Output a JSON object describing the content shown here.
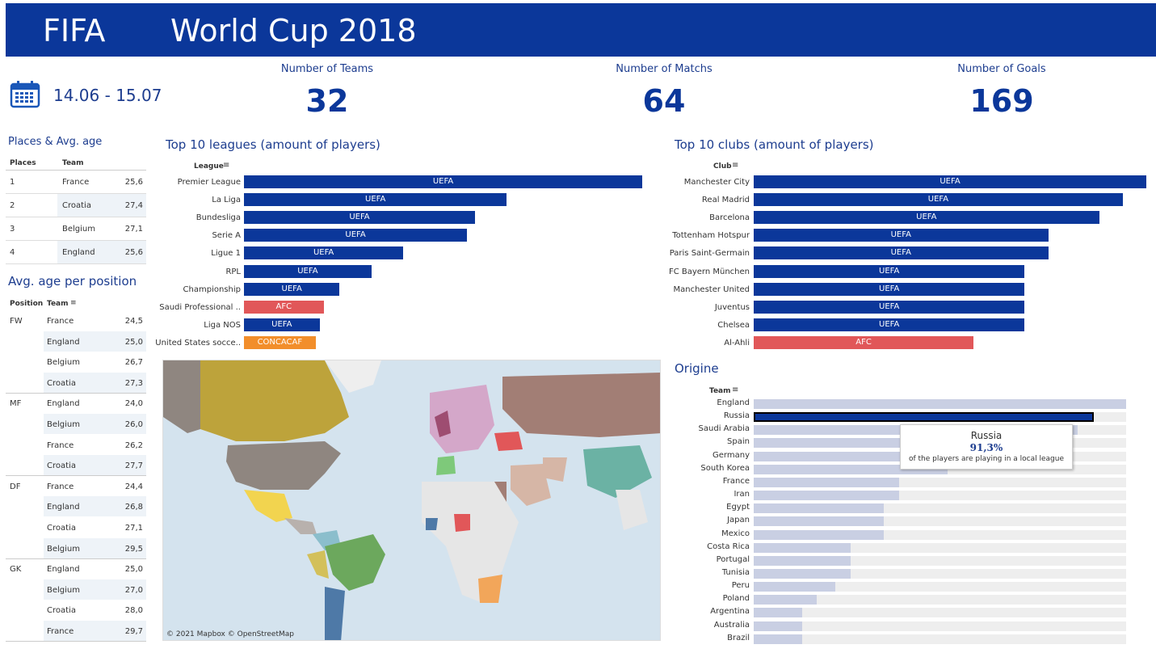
{
  "header": {
    "brand": "FIFA",
    "title": "World Cup 2018"
  },
  "dates": "14.06 - 15.07",
  "kpis": [
    {
      "label": "Number of Teams",
      "value": "32"
    },
    {
      "label": "Number of Matchs",
      "value": "64"
    },
    {
      "label": "Number of Goals",
      "value": "169"
    }
  ],
  "places": {
    "title": "Places & Avg. age",
    "col_places": "Places",
    "col_team": "Team",
    "rows": [
      {
        "place": "1",
        "team": "France",
        "age": "25,6"
      },
      {
        "place": "2",
        "team": "Croatia",
        "age": "27,4"
      },
      {
        "place": "3",
        "team": "Belgium",
        "age": "27,1"
      },
      {
        "place": "4",
        "team": "England",
        "age": "25,6"
      }
    ]
  },
  "positions": {
    "title": "Avg. age per position",
    "col_position": "Position",
    "col_team": "Team",
    "groups": [
      {
        "position": "FW",
        "rows": [
          {
            "team": "France",
            "age": "24,5"
          },
          {
            "team": "England",
            "age": "25,0"
          },
          {
            "team": "Belgium",
            "age": "26,7"
          },
          {
            "team": "Croatia",
            "age": "27,3"
          }
        ]
      },
      {
        "position": "MF",
        "rows": [
          {
            "team": "England",
            "age": "24,0"
          },
          {
            "team": "Belgium",
            "age": "26,0"
          },
          {
            "team": "France",
            "age": "26,2"
          },
          {
            "team": "Croatia",
            "age": "27,7"
          }
        ]
      },
      {
        "position": "DF",
        "rows": [
          {
            "team": "France",
            "age": "24,4"
          },
          {
            "team": "England",
            "age": "26,8"
          },
          {
            "team": "Croatia",
            "age": "27,1"
          },
          {
            "team": "Belgium",
            "age": "29,5"
          }
        ]
      },
      {
        "position": "GK",
        "rows": [
          {
            "team": "England",
            "age": "25,0"
          },
          {
            "team": "Belgium",
            "age": "27,0"
          },
          {
            "team": "Croatia",
            "age": "28,0"
          },
          {
            "team": "France",
            "age": "29,7"
          }
        ]
      }
    ]
  },
  "map": {
    "attribution": "© 2021 Mapbox © OpenStreetMap"
  },
  "tooltip": {
    "team": "Russia",
    "value": "91,3%",
    "text": "of the players are playing in a local league"
  },
  "colors": {
    "uefa": "#0b379a",
    "afc": "#e15759",
    "concacaf": "#f28e2b",
    "header": "#0b379a",
    "origin_bar": "#c9cfe3",
    "origin_track": "#eeeeee"
  },
  "chart_data": [
    {
      "type": "bar",
      "title": "Top 10 leagues (amount of players)",
      "axis_header": "League",
      "categories": [
        "Premier League",
        "La Liga",
        "Bundesliga",
        "Serie A",
        "Ligue 1",
        "RPL",
        "Championship",
        "Saudi Professional ..",
        "Liga NOS",
        "United States socce.."
      ],
      "values": [
        100,
        66,
        58,
        56,
        40,
        32,
        24,
        20,
        19,
        18
      ],
      "labels": [
        "UEFA",
        "UEFA",
        "UEFA",
        "UEFA",
        "UEFA",
        "UEFA",
        "UEFA",
        "AFC",
        "UEFA",
        "CONCACAF"
      ]
    },
    {
      "type": "bar",
      "title": "Top 10 clubs (amount of players)",
      "axis_header": "Club",
      "categories": [
        "Manchester City",
        "Real Madrid",
        "Barcelona",
        "Tottenham Hotspur",
        "Paris Saint-Germain",
        "FC Bayern München",
        "Manchester United",
        "Juventus",
        "Chelsea",
        "Al-Ahli"
      ],
      "values": [
        100,
        94,
        88,
        75,
        75,
        69,
        69,
        69,
        69,
        56
      ],
      "labels": [
        "UEFA",
        "UEFA",
        "UEFA",
        "UEFA",
        "UEFA",
        "UEFA",
        "UEFA",
        "UEFA",
        "UEFA",
        "AFC"
      ]
    },
    {
      "type": "bar",
      "title": "Origine",
      "axis_header": "Team",
      "categories": [
        "England",
        "Russia",
        "Saudi Arabia",
        "Spain",
        "Germany",
        "South Korea",
        "France",
        "Iran",
        "Egypt",
        "Japan",
        "Mexico",
        "Costa Rica",
        "Portugal",
        "Tunisia",
        "Peru",
        "Poland",
        "Argentina",
        "Australia",
        "Brazil"
      ],
      "values": [
        100,
        91.3,
        87,
        52,
        52,
        52,
        39,
        39,
        35,
        35,
        35,
        26,
        26,
        26,
        22,
        17,
        13,
        13,
        13
      ],
      "highlight": "Russia"
    }
  ]
}
